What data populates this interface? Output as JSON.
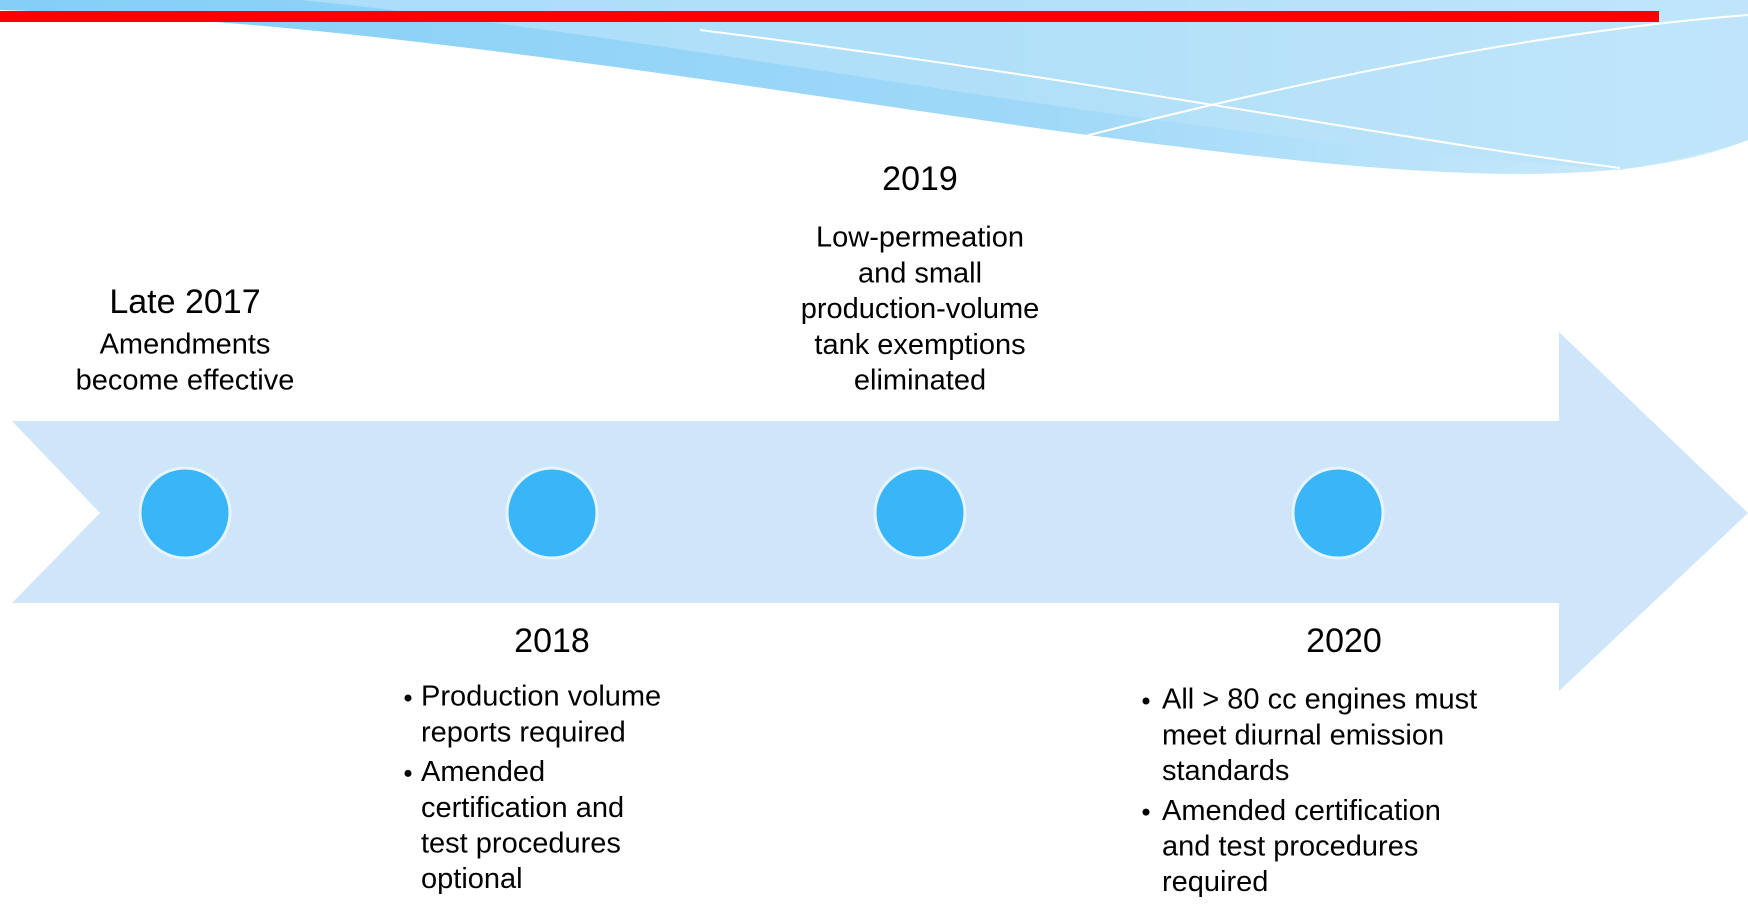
{
  "timeline": [
    {
      "year": "Late 2017",
      "lines": [
        "Amendments",
        "become effective"
      ]
    },
    {
      "year": "2018",
      "bullets": [
        [
          "Production volume",
          "reports required"
        ],
        [
          "Amended",
          "certification and",
          "test procedures",
          "optional"
        ]
      ]
    },
    {
      "year": "2019",
      "lines": [
        "Low-permeation",
        "and small",
        "production-volume",
        "tank exemptions",
        "eliminated"
      ]
    },
    {
      "year": "2020",
      "bullets": [
        [
          "All > 80 cc engines must",
          "meet diurnal emission",
          "standards"
        ],
        [
          "Amended certification",
          "and test procedures",
          "required"
        ]
      ]
    }
  ]
}
